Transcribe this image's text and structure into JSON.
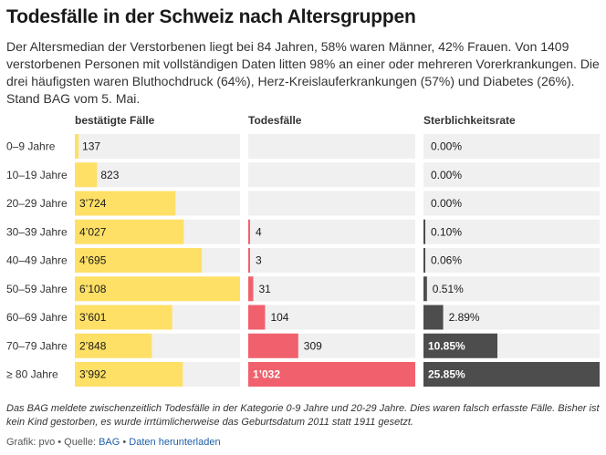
{
  "title": "Todesfälle in der Schweiz nach Altersgruppen",
  "subtitle": "Der Altersmedian der Verstorbenen liegt bei 84 Jahren, 58% waren Männer, 42% Frauen. Von 1409 verstorbenen Personen mit vollständigen Daten litten 98% an einer oder mehreren Vorerkrankungen. Die drei häufigsten waren Bluthochdruck (64%), Herz-Kreislauferkrankungen (57%) und Diabetes (26%). Stand BAG vom 5. Mai.",
  "note": "Das BAG meldete zwischenzeitlich Todesfälle in der Kategorie 0-9 Jahre und 20-29 Jahre. Dies waren falsch erfasste Fälle. Bisher ist kein Kind gestorben, es wurde irrtümlicherweise das Geburtsdatum 2011 statt 1911 gesetzt.",
  "source": {
    "prefix": "Grafik: pvo • Quelle:",
    "source_link": "BAG",
    "separator": "•",
    "download_link": "Daten herunterladen"
  },
  "colors": {
    "confirmed": "#ffe066",
    "deaths": "#f0616d",
    "rate": "#4d4d4d",
    "track": "#f0f0f0"
  },
  "chart_data": {
    "type": "table",
    "categories": [
      "0–9 Jahre",
      "10–19 Jahre",
      "20–29 Jahre",
      "30–39 Jahre",
      "40–49 Jahre",
      "50–59 Jahre",
      "60–69 Jahre",
      "70–79 Jahre",
      "≥ 80 Jahre"
    ],
    "columns": [
      {
        "name": "bestätigte Fälle",
        "values": [
          137,
          823,
          3724,
          4027,
          4695,
          6108,
          3601,
          2848,
          3992
        ],
        "labels": [
          "137",
          "823",
          "3’724",
          "4’027",
          "4’695",
          "6’108",
          "3’601",
          "2’848",
          "3’992"
        ],
        "max": 6108
      },
      {
        "name": "Todesfälle",
        "values": [
          0,
          0,
          0,
          4,
          3,
          31,
          104,
          309,
          1032
        ],
        "labels": [
          "",
          "",
          "",
          "4",
          "3",
          "31",
          "104",
          "309",
          "1’032"
        ],
        "max": 1032
      },
      {
        "name": "Sterblichkeitsrate",
        "values": [
          0.0,
          0.0,
          0.0,
          0.1,
          0.06,
          0.51,
          2.89,
          10.85,
          25.85
        ],
        "labels": [
          "0.00%",
          "0.00%",
          "0.00%",
          "0.10%",
          "0.06%",
          "0.51%",
          "2.89%",
          "10.85%",
          "25.85%"
        ],
        "max": 25.85
      }
    ]
  }
}
